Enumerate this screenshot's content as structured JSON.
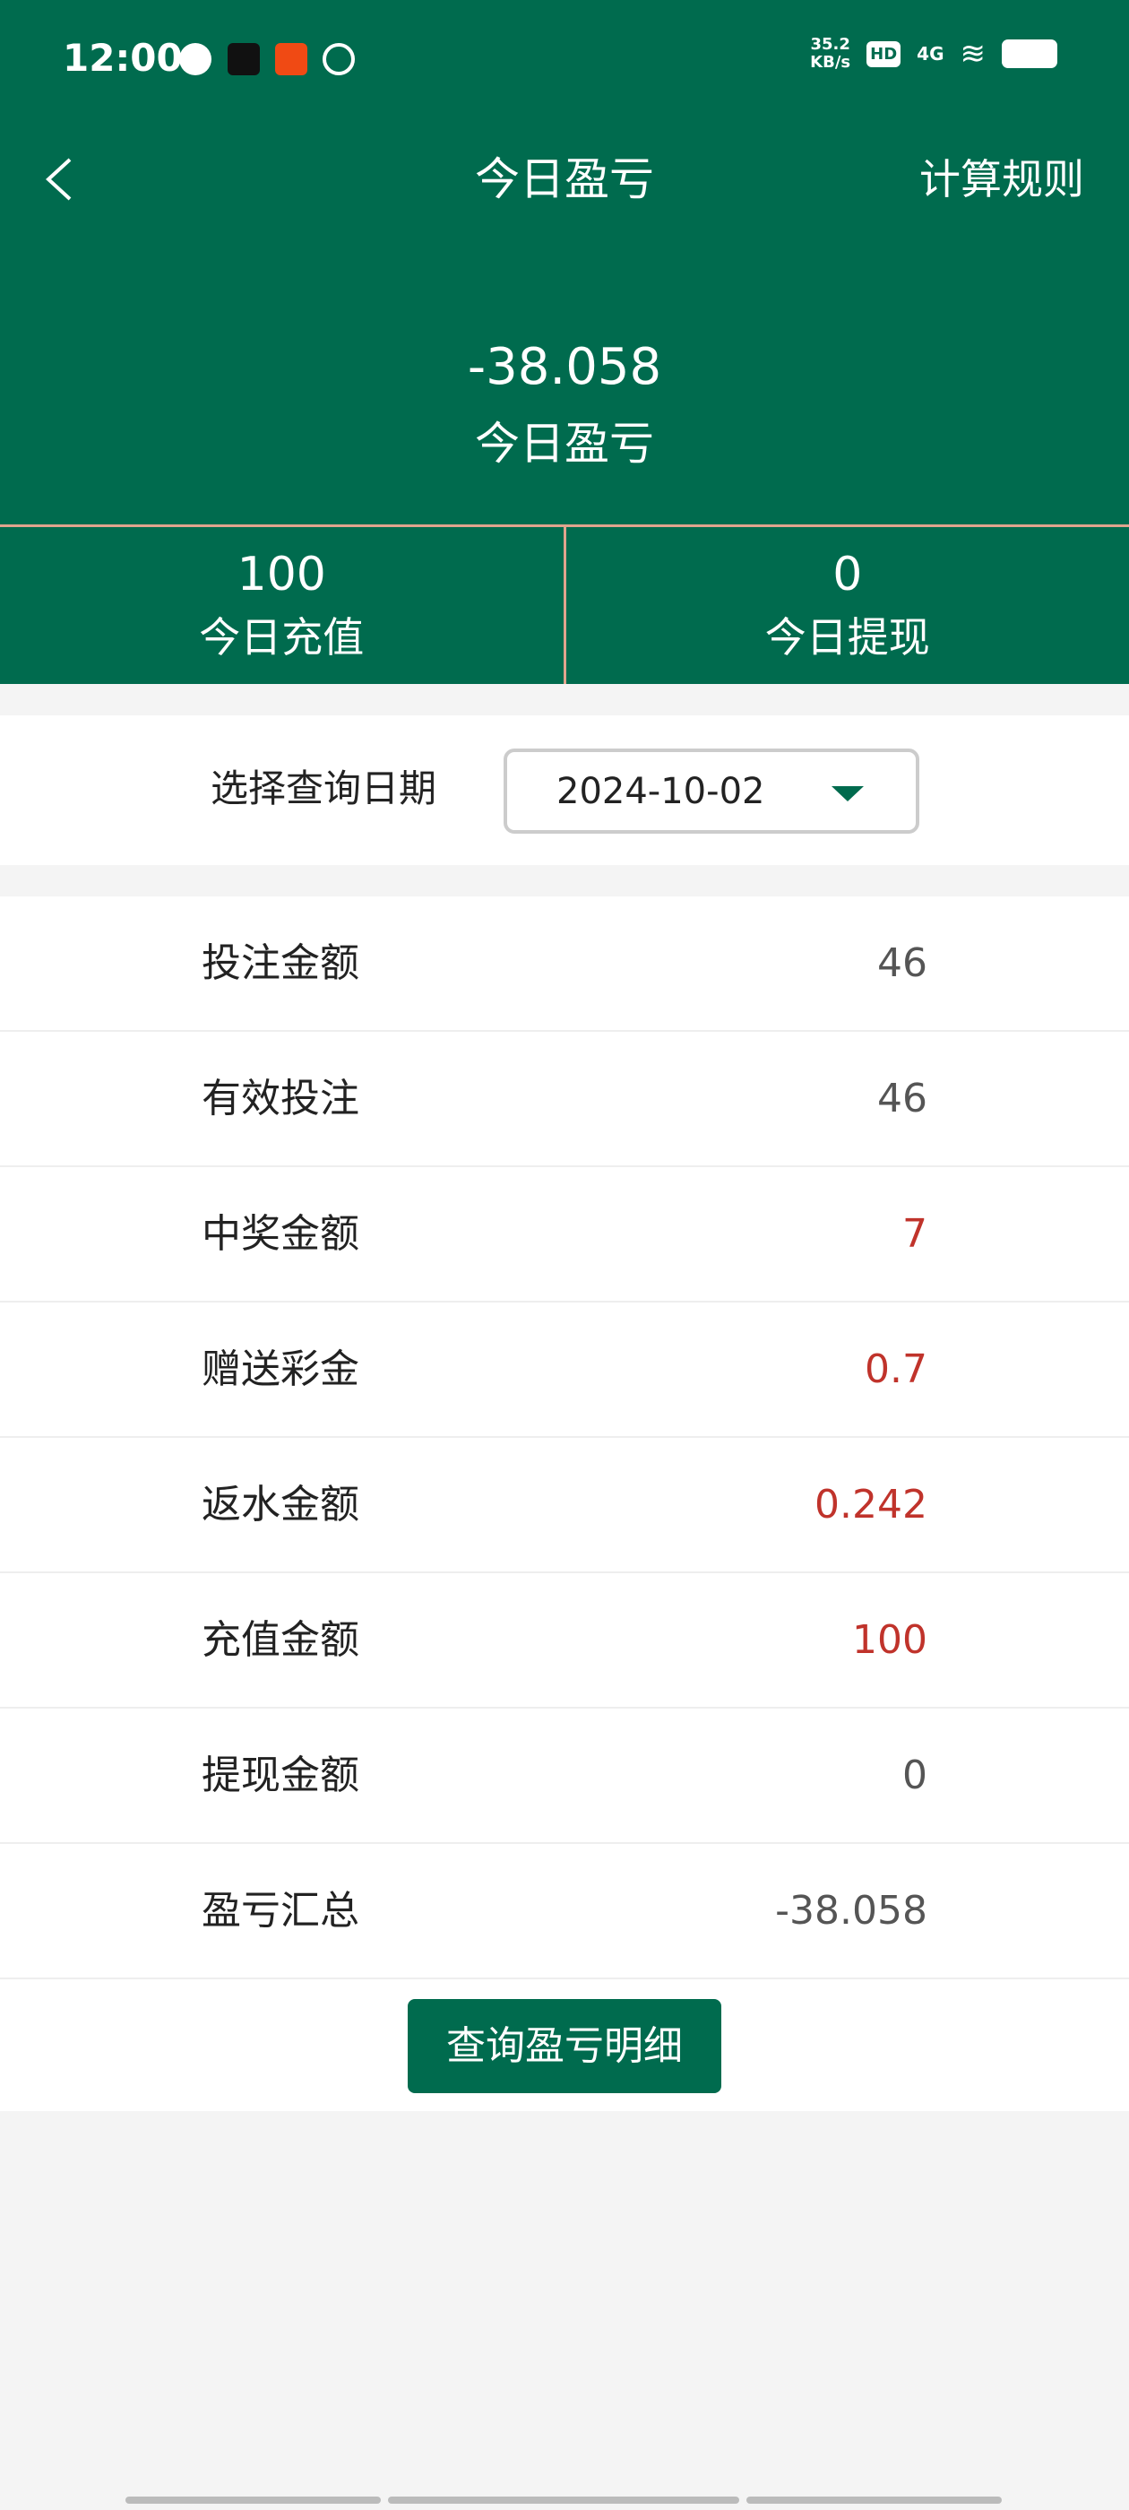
{
  "status_bar": {
    "time": "12:00",
    "speed_value": "35.2",
    "speed_unit": "KB/s",
    "hd": "HD",
    "network": "4G"
  },
  "header": {
    "title": "今日盈亏",
    "rules_link": "计算规则"
  },
  "summary": {
    "value": "-38.058",
    "label": "今日盈亏"
  },
  "stats": [
    {
      "value": "100",
      "label": "今日充值"
    },
    {
      "value": "0",
      "label": "今日提现"
    }
  ],
  "date_filter": {
    "label": "选择查询日期",
    "value": "2024-10-02"
  },
  "rows": [
    {
      "label": "投注金额",
      "value": "46",
      "color": "#555555"
    },
    {
      "label": "有效投注",
      "value": "46",
      "color": "#555555"
    },
    {
      "label": "中奖金额",
      "value": "7",
      "color": "#c0332b"
    },
    {
      "label": "赠送彩金",
      "value": "0.7",
      "color": "#c0332b"
    },
    {
      "label": "返水金额",
      "value": "0.242",
      "color": "#c0332b"
    },
    {
      "label": "充值金额",
      "value": "100",
      "color": "#c0332b"
    },
    {
      "label": "提现金额",
      "value": "0",
      "color": "#555555"
    },
    {
      "label": "盈亏汇总",
      "value": "-38.058",
      "color": "#555555"
    }
  ],
  "query_button": "查询盈亏明细",
  "colors": {
    "brand": "#006b4e",
    "positive": "#c0332b",
    "divider": "#e0a48e"
  }
}
